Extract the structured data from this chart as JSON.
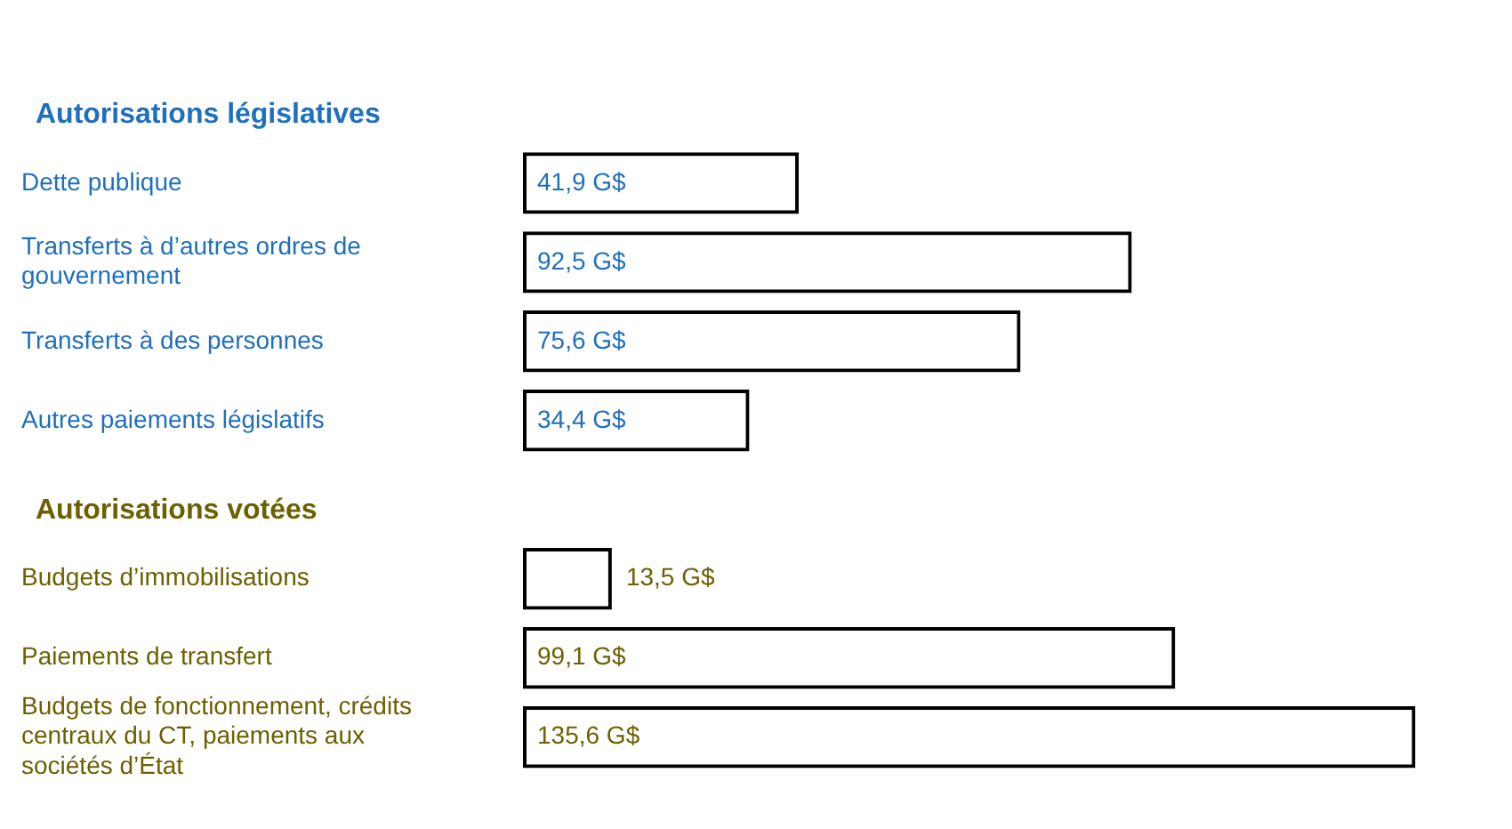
{
  "chart_data": {
    "type": "bar",
    "orientation": "horizontal",
    "grid": false,
    "legend": false,
    "annotations": [
      "Autorisations législatives",
      "Autorisations votées"
    ],
    "categories": [
      "Dette publique",
      "Transferts à d’autres ordres de gouvernement",
      "Transferts à des personnes",
      "Autres paiements législatifs",
      "Budgets d’immobilisations",
      "Paiements de transfert",
      "Budgets de fonctionnement, crédits centraux du CT, paiements aux sociétés d’État"
    ],
    "series": [
      {
        "color": "#000000",
        "values": [
          41.9,
          92.5,
          75.6,
          34.4,
          null,
          null,
          null
        ],
        "value_labels": [
          "41,9 G$",
          "92,5 G$",
          "75,6 G$",
          "34,4 G$",
          null,
          null,
          null
        ]
      },
      {
        "color": "#000000",
        "values": [
          null,
          null,
          null,
          null,
          13.5,
          99.1,
          135.6
        ],
        "value_labels": [
          null,
          null,
          null,
          null,
          "13,5 G$",
          "99,1 G$",
          "135,6 G$"
        ]
      }
    ]
  }
}
